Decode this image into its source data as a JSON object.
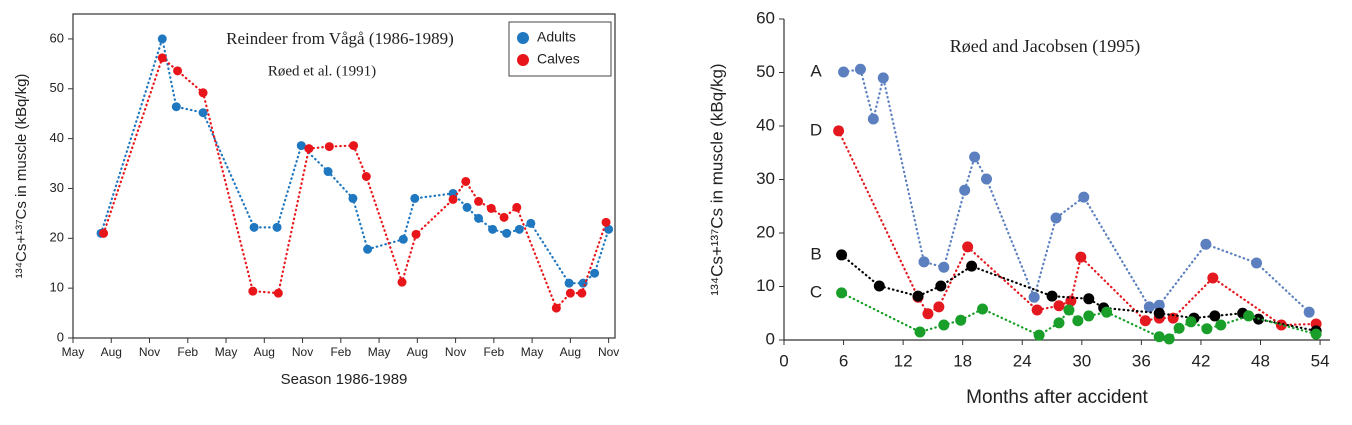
{
  "chart_data": [
    {
      "type": "line",
      "title": "Reindeer from Vågå (1986-1989)",
      "subtitle": "Røed et al. (1991)",
      "xlabel": "Season 1986-1989",
      "ylabel": "¹³⁴Cs+¹³⁷Cs in muscle (kBq/kg)",
      "xlim": [
        0,
        42.5
      ],
      "ylim": [
        0,
        65
      ],
      "xticks": [
        {
          "value": 0,
          "label": "May"
        },
        {
          "value": 3,
          "label": "Aug"
        },
        {
          "value": 6,
          "label": "Nov"
        },
        {
          "value": 9,
          "label": "Feb"
        },
        {
          "value": 12,
          "label": "May"
        },
        {
          "value": 15,
          "label": "Aug"
        },
        {
          "value": 18,
          "label": "Nov"
        },
        {
          "value": 21,
          "label": "Feb"
        },
        {
          "value": 24,
          "label": "May"
        },
        {
          "value": 27,
          "label": "Aug"
        },
        {
          "value": 30,
          "label": "Nov"
        },
        {
          "value": 33,
          "label": "Feb"
        },
        {
          "value": 36,
          "label": "May"
        },
        {
          "value": 39,
          "label": "Aug"
        },
        {
          "value": 42,
          "label": "Nov"
        }
      ],
      "yticks": [
        0,
        10,
        20,
        30,
        40,
        50,
        60
      ],
      "legend": "upper right",
      "series": [
        {
          "name": "Adults",
          "color": "#1f77c0",
          "x": [
            2.2,
            7.0,
            8.1,
            10.2,
            14.2,
            16.0,
            17.9,
            20.0,
            21.95,
            23.1,
            25.9,
            26.8,
            29.8,
            30.9,
            31.8,
            32.9,
            34.0,
            35.0,
            35.9,
            38.9,
            40.0,
            40.9,
            42.0
          ],
          "values": [
            21,
            60,
            46.4,
            45.2,
            22.2,
            22.2,
            38.6,
            33.4,
            28,
            17.8,
            19.8,
            28,
            29,
            26.2,
            24,
            21.8,
            21,
            21.8,
            23,
            11,
            11,
            13,
            21.8
          ]
        },
        {
          "name": "Calves",
          "color": "#e8161b",
          "x": [
            2.4,
            7.0,
            8.2,
            10.2,
            14.1,
            16.1,
            18.5,
            20.1,
            22.0,
            23.0,
            25.8,
            26.9,
            29.8,
            30.8,
            31.8,
            32.8,
            33.8,
            34.8,
            37.9,
            39.0,
            39.9,
            41.8
          ],
          "values": [
            21,
            56.2,
            53.6,
            49.2,
            9.4,
            9,
            38,
            38.4,
            38.6,
            32.4,
            11.2,
            20.8,
            27.8,
            31.4,
            27.4,
            26,
            24.2,
            26.2,
            6,
            9,
            9,
            23.2
          ]
        }
      ]
    },
    {
      "type": "line",
      "title": "Røed and Jacobsen (1995)",
      "xlabel": "Months after accident",
      "ylabel": "¹³⁴Cs+¹³⁷Cs in muscle (kBq/kg)",
      "xlim": [
        0,
        55
      ],
      "ylim": [
        0,
        60
      ],
      "xticks": [
        0,
        6,
        12,
        18,
        24,
        30,
        36,
        42,
        48,
        54
      ],
      "yticks": [
        0,
        10,
        20,
        30,
        40,
        50,
        60
      ],
      "legend": "left",
      "series": [
        {
          "name": "A",
          "color": "#5b7fbf",
          "x": [
            6.0,
            7.7,
            9.0,
            10.0,
            14.1,
            16.1,
            18.2,
            19.2,
            20.4,
            25.2,
            27.4,
            30.2,
            36.8,
            37.8,
            42.5,
            47.6,
            52.9
          ],
          "values": [
            50.1,
            50.6,
            41.3,
            49,
            14.6,
            13.6,
            28,
            34.2,
            30.1,
            8,
            22.8,
            26.7,
            6.2,
            6.5,
            17.9,
            14.4,
            5.2
          ]
        },
        {
          "name": "D",
          "color": "#e3191f",
          "x": [
            5.5,
            13.5,
            14.5,
            15.6,
            18.5,
            25.5,
            27.7,
            28.9,
            29.9,
            36.4,
            37.8,
            39.2,
            43.2,
            50.1,
            53.6
          ],
          "values": [
            39.1,
            8,
            4.9,
            6.2,
            17.4,
            5.6,
            6.4,
            7.3,
            15.5,
            3.6,
            4.1,
            4.1,
            11.6,
            2.8,
            3
          ]
        },
        {
          "name": "B",
          "color": "#000000",
          "x": [
            5.8,
            9.6,
            13.5,
            15.8,
            18.9,
            27.0,
            30.7,
            32.2,
            37.8,
            41.3,
            43.4,
            46.2,
            47.8,
            53.6
          ],
          "values": [
            15.9,
            10.1,
            8.2,
            10.1,
            13.8,
            8.2,
            7.7,
            6,
            5,
            4.1,
            4.5,
            5,
            3.9,
            1.7
          ]
        },
        {
          "name": "C",
          "color": "#1a9e2a",
          "x": [
            5.8,
            13.7,
            16.1,
            17.8,
            20.0,
            25.7,
            27.7,
            28.7,
            29.6,
            30.7,
            32.5,
            37.8,
            38.8,
            39.8,
            41.0,
            42.6,
            44.0,
            46.8,
            53.6
          ],
          "values": [
            8.8,
            1.5,
            2.8,
            3.7,
            5.8,
            0.9,
            3.2,
            5.6,
            3.6,
            4.5,
            5.2,
            0.6,
            0.2,
            2.2,
            3.4,
            2.1,
            2.8,
            4.5,
            1.1
          ]
        }
      ]
    }
  ]
}
